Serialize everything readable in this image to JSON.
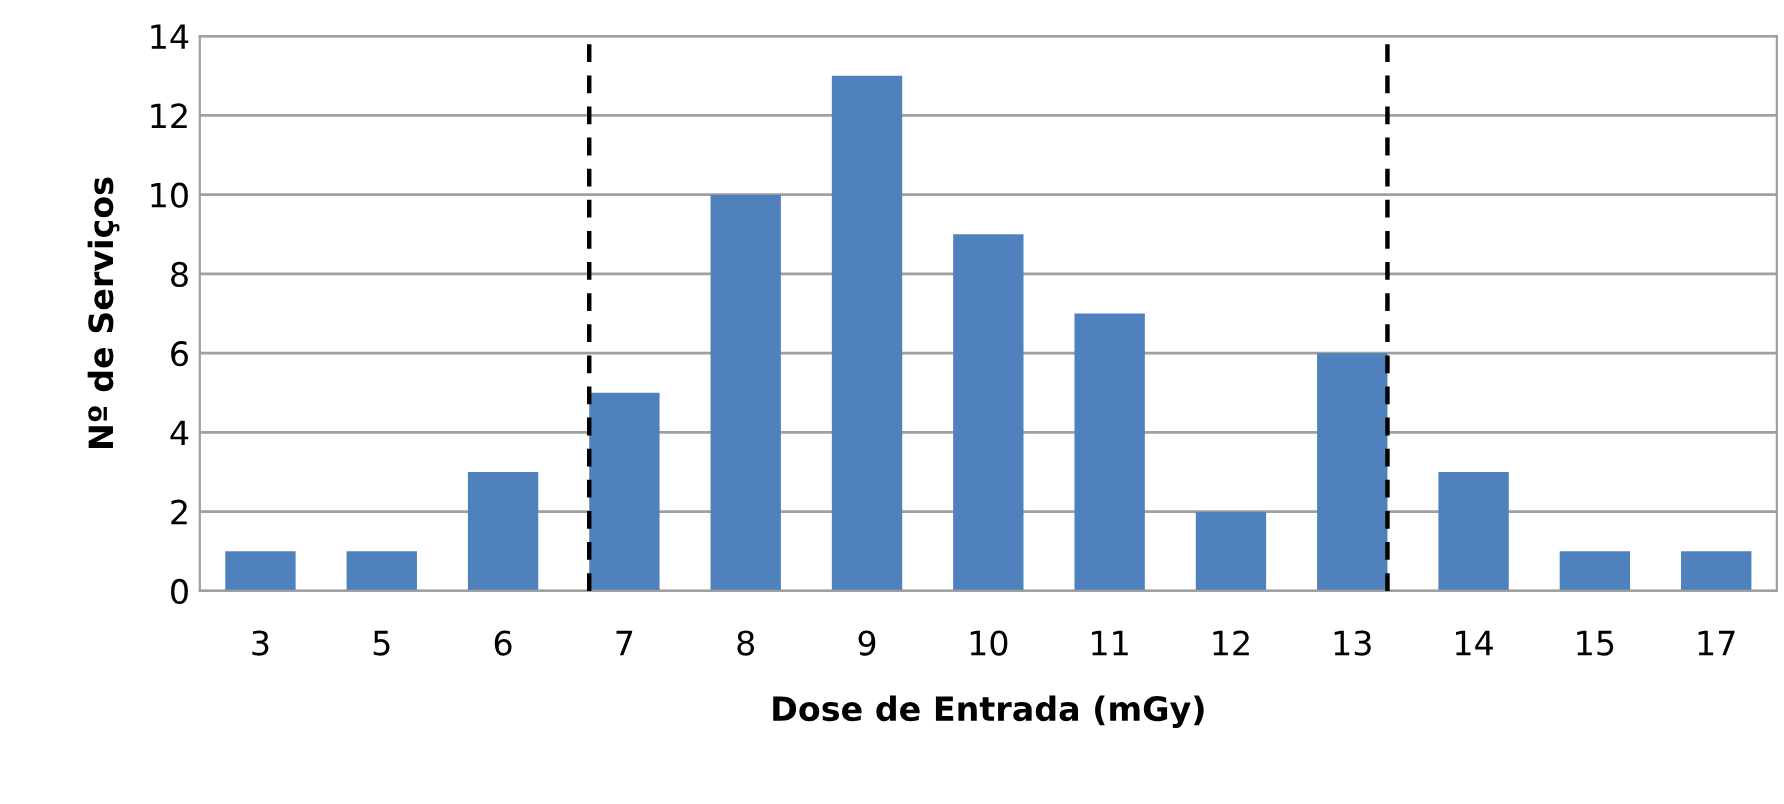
{
  "chart_data": {
    "type": "bar",
    "xlabel": "Dose de Entrada (mGy)",
    "ylabel": "Nº de Serviços",
    "categories": [
      "3",
      "5",
      "6",
      "7",
      "8",
      "9",
      "10",
      "11",
      "12",
      "13",
      "14",
      "15",
      "17"
    ],
    "values": [
      1,
      1,
      3,
      5,
      10,
      13,
      9,
      7,
      2,
      6,
      3,
      1,
      1
    ],
    "color": "#4f81bd",
    "ylim": [
      0,
      14
    ],
    "yticks": [
      0,
      2,
      4,
      6,
      8,
      10,
      12,
      14
    ],
    "grid": "y",
    "ref_lines": [
      {
        "axis": "x",
        "value": "7",
        "line_style": "dashed",
        "color": "#000000"
      },
      {
        "axis": "x",
        "value": "13",
        "line_style": "dashed",
        "color": "#000000"
      }
    ]
  }
}
